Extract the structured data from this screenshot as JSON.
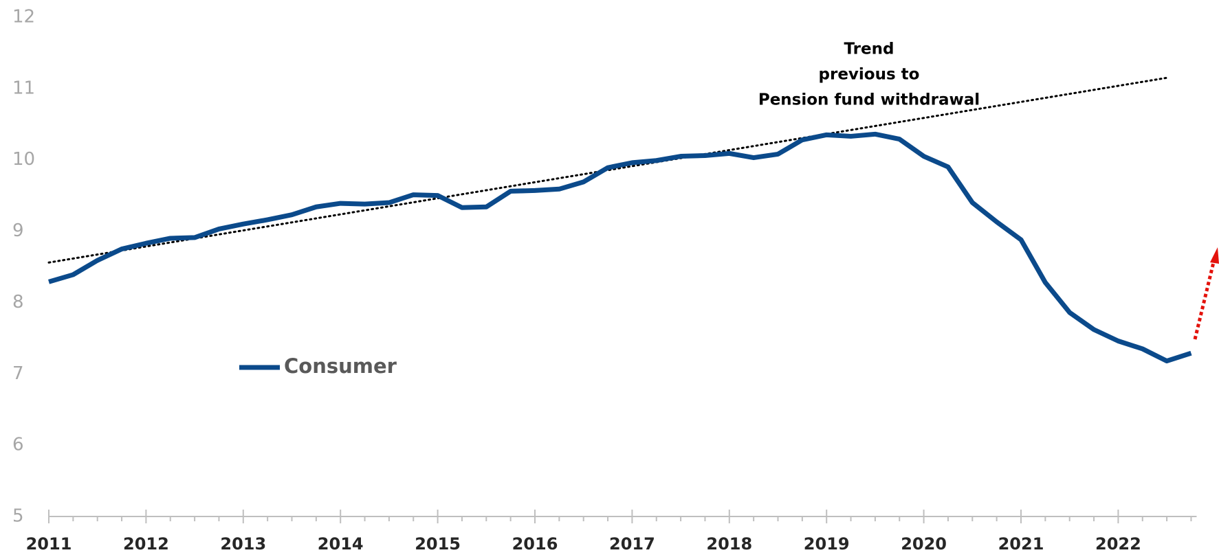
{
  "chart_data": {
    "type": "line",
    "x": [
      2011,
      2011.25,
      2011.5,
      2011.75,
      2012,
      2012.25,
      2012.5,
      2012.75,
      2013,
      2013.25,
      2013.5,
      2013.75,
      2014,
      2014.25,
      2014.5,
      2014.75,
      2015,
      2015.25,
      2015.5,
      2015.75,
      2016,
      2016.25,
      2016.5,
      2016.75,
      2017,
      2017.25,
      2017.5,
      2017.75,
      2018,
      2018.25,
      2018.5,
      2018.75,
      2019,
      2019.25,
      2019.5,
      2019.75,
      2020,
      2020.25,
      2020.5,
      2020.75,
      2021,
      2021.25,
      2021.5,
      2021.75,
      2022,
      2022.25,
      2022.5,
      2022.75
    ],
    "series": [
      {
        "name": "Consumer",
        "color": "#0b4a8b",
        "values": [
          8.29,
          8.39,
          8.59,
          8.75,
          8.83,
          8.9,
          8.91,
          9.03,
          9.1,
          9.16,
          9.23,
          9.34,
          9.39,
          9.38,
          9.4,
          9.51,
          9.5,
          9.33,
          9.34,
          9.56,
          9.57,
          9.59,
          9.69,
          9.89,
          9.96,
          9.99,
          10.05,
          10.06,
          10.09,
          10.03,
          10.08,
          10.28,
          10.35,
          10.33,
          10.36,
          10.29,
          10.05,
          9.9,
          9.4,
          9.13,
          8.88,
          8.28,
          7.86,
          7.62,
          7.46,
          7.35,
          7.18,
          7.29
        ]
      }
    ],
    "trend": {
      "x": [
        2011,
        2022.5
      ],
      "values": [
        8.56,
        11.15
      ],
      "color": "#000000"
    },
    "annotation": [
      "Trend",
      "previous to",
      "Pension fund withdrawal"
    ],
    "xlim": [
      2011,
      2022.75
    ],
    "xticks": [
      2011,
      2012,
      2013,
      2014,
      2015,
      2016,
      2017,
      2018,
      2019,
      2020,
      2021,
      2022
    ],
    "ylim": [
      5,
      12
    ],
    "yticks": [
      5,
      6,
      7,
      8,
      9,
      10,
      11,
      12
    ]
  }
}
